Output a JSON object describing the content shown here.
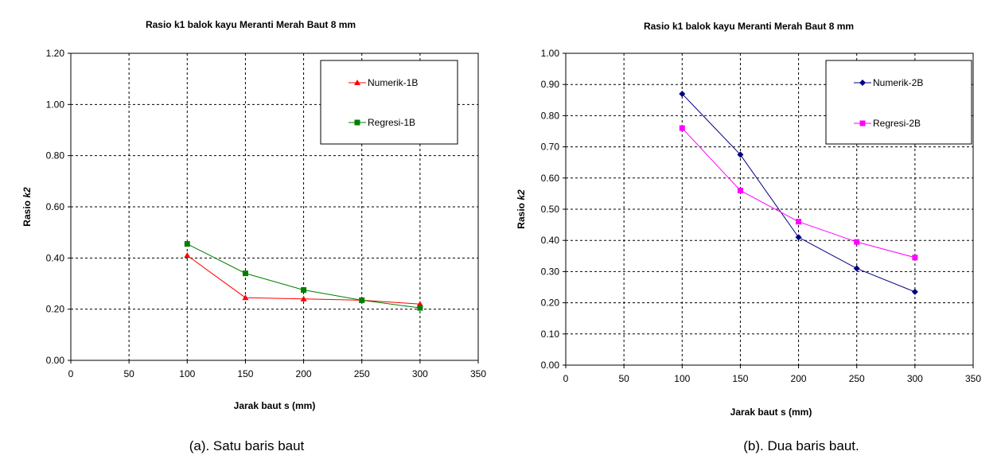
{
  "captions": [
    "(a). Satu baris baut",
    "(b). Dua baris baut."
  ],
  "chart_data": [
    {
      "type": "line",
      "title": "Rasio k1 balok kayu Meranti Merah Baut 8 mm",
      "xlabel": "Jarak baut s (mm)",
      "ylabel_prefix": "Rasio ",
      "ylabel_italic": "k2",
      "xlim": [
        0,
        350
      ],
      "ylim": [
        0,
        1.2
      ],
      "xticks": [
        "0",
        "50",
        "100",
        "150",
        "200",
        "250",
        "300",
        "350"
      ],
      "yticks": [
        "0.00",
        "0.20",
        "0.40",
        "0.60",
        "0.80",
        "1.00",
        "1.20"
      ],
      "grid": true,
      "legend_position": "top-right",
      "series": [
        {
          "name": "Numerik-1B",
          "color": "#ff0000",
          "marker": "triangle",
          "x": [
            100,
            150,
            200,
            250,
            300
          ],
          "values": [
            0.41,
            0.245,
            0.24,
            0.235,
            0.22
          ]
        },
        {
          "name": "Regresi-1B",
          "color": "#007f00",
          "marker": "square",
          "x": [
            100,
            150,
            200,
            250,
            300
          ],
          "values": [
            0.455,
            0.34,
            0.275,
            0.235,
            0.205
          ]
        }
      ]
    },
    {
      "type": "line",
      "title": "Rasio k1 balok kayu Meranti Merah Baut 8 mm",
      "xlabel": "Jarak baut s (mm)",
      "ylabel_prefix": "Rasio ",
      "ylabel_italic": "k2",
      "xlim": [
        0,
        350
      ],
      "ylim": [
        0,
        1.0
      ],
      "xticks": [
        "0",
        "50",
        "100",
        "150",
        "200",
        "250",
        "300",
        "350"
      ],
      "yticks": [
        "0.00",
        "0.10",
        "0.20",
        "0.30",
        "0.40",
        "0.50",
        "0.60",
        "0.70",
        "0.80",
        "0.90",
        "1.00"
      ],
      "grid": true,
      "legend_position": "top-right",
      "series": [
        {
          "name": "Numerik-2B",
          "color": "#000080",
          "marker": "diamond",
          "x": [
            100,
            150,
            200,
            250,
            300
          ],
          "values": [
            0.87,
            0.675,
            0.41,
            0.31,
            0.235
          ]
        },
        {
          "name": "Regresi-2B",
          "color": "#ff00ff",
          "marker": "square",
          "x": [
            100,
            150,
            200,
            250,
            300
          ],
          "values": [
            0.76,
            0.56,
            0.46,
            0.395,
            0.345
          ]
        }
      ]
    }
  ]
}
